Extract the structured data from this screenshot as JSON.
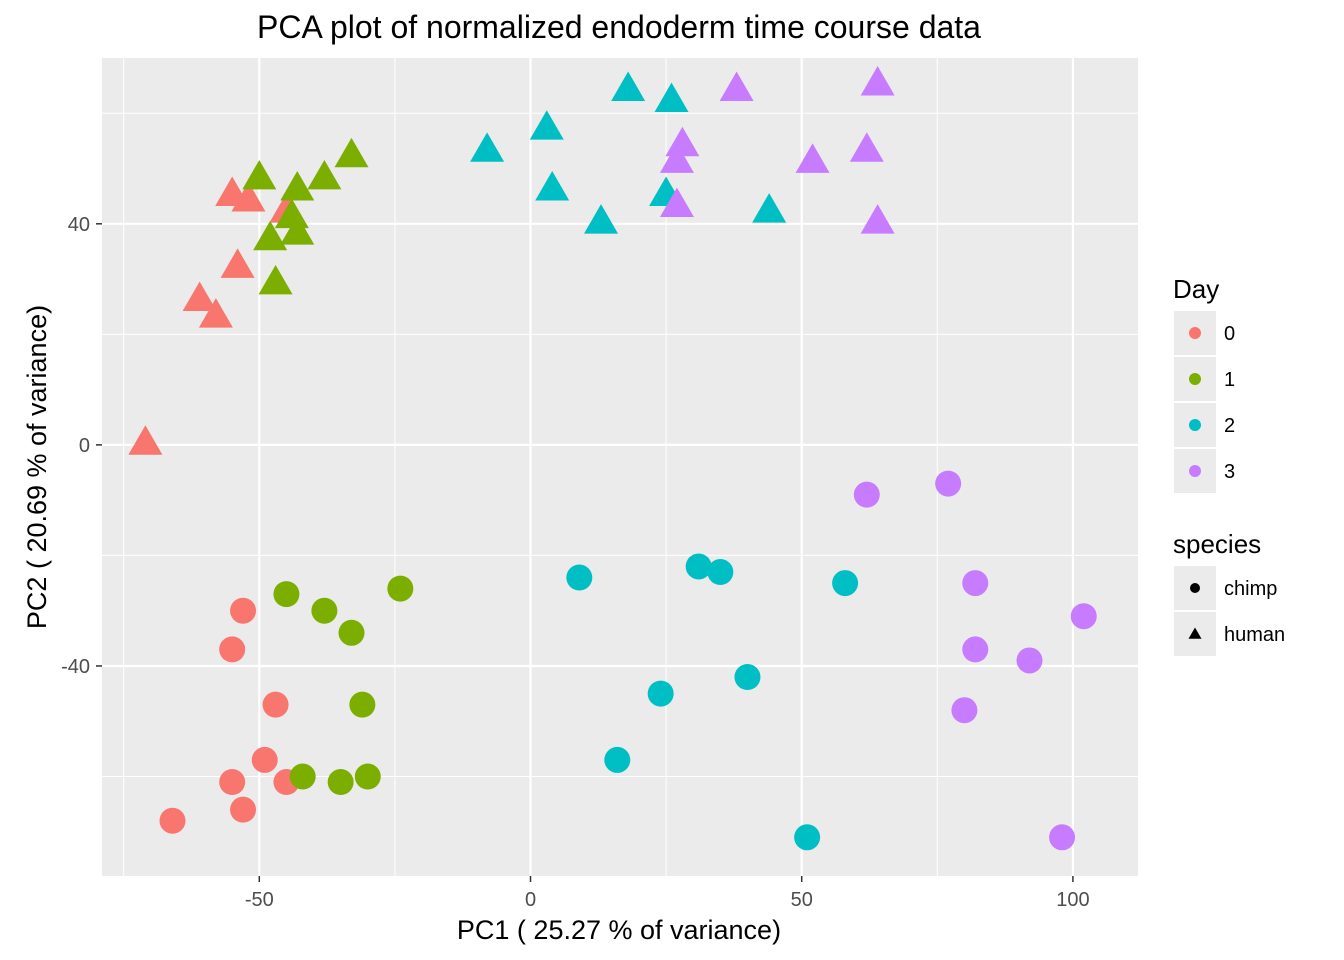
{
  "chart_data": {
    "type": "scatter",
    "title": "PCA plot of normalized endoderm time course data",
    "xlabel": "PC1 ( 25.27 % of variance)",
    "ylabel": "PC2 ( 20.69 % of variance)",
    "xlim": [
      -79,
      112
    ],
    "ylim": [
      -78,
      70
    ],
    "x_ticks": [
      -50,
      0,
      50,
      100
    ],
    "y_ticks": [
      -40,
      0,
      40
    ],
    "x_minor": [
      -75,
      -25,
      25,
      75
    ],
    "y_minor": [
      -60,
      -20,
      20,
      60
    ],
    "grid": true,
    "legend_position": "right",
    "colors": {
      "0": "#F8766D",
      "1": "#7CAE00",
      "2": "#00BFC4",
      "3": "#C77CFF"
    },
    "panel_bg": "#EBEBEB",
    "legends": [
      {
        "title": "Day",
        "type": "color",
        "items": [
          {
            "label": "0",
            "key": "0"
          },
          {
            "label": "1",
            "key": "1"
          },
          {
            "label": "2",
            "key": "2"
          },
          {
            "label": "3",
            "key": "3"
          }
        ]
      },
      {
        "title": "species",
        "type": "shape",
        "items": [
          {
            "label": "chimp",
            "shape": "circle"
          },
          {
            "label": "human",
            "shape": "triangle"
          }
        ]
      }
    ],
    "series": [
      {
        "day": "0",
        "species": "human",
        "shape": "triangle",
        "points": [
          [
            -71,
            0
          ],
          [
            -55,
            45
          ],
          [
            -52,
            44
          ],
          [
            -45,
            42
          ],
          [
            -54,
            32
          ],
          [
            -61,
            26
          ],
          [
            -58,
            23
          ]
        ]
      },
      {
        "day": "1",
        "species": "human",
        "shape": "triangle",
        "points": [
          [
            -50,
            48
          ],
          [
            -43,
            46
          ],
          [
            -38,
            48
          ],
          [
            -33,
            52
          ],
          [
            -44,
            41
          ],
          [
            -48,
            37
          ],
          [
            -43,
            38
          ],
          [
            -47,
            29
          ]
        ]
      },
      {
        "day": "2",
        "species": "human",
        "shape": "triangle",
        "points": [
          [
            -8,
            53
          ],
          [
            3,
            57
          ],
          [
            18,
            64
          ],
          [
            26,
            62
          ],
          [
            4,
            46
          ],
          [
            13,
            40
          ],
          [
            25,
            45
          ],
          [
            44,
            42
          ]
        ]
      },
      {
        "day": "3",
        "species": "human",
        "shape": "triangle",
        "points": [
          [
            38,
            64
          ],
          [
            64,
            65
          ],
          [
            28,
            54
          ],
          [
            27,
            51
          ],
          [
            52,
            51
          ],
          [
            62,
            53
          ],
          [
            27,
            43
          ],
          [
            64,
            40
          ]
        ]
      },
      {
        "day": "0",
        "species": "chimp",
        "shape": "circle",
        "points": [
          [
            -53,
            -30
          ],
          [
            -55,
            -37
          ],
          [
            -47,
            -47
          ],
          [
            -49,
            -57
          ],
          [
            -55,
            -61
          ],
          [
            -45,
            -61
          ],
          [
            -53,
            -66
          ],
          [
            -66,
            -68
          ]
        ]
      },
      {
        "day": "1",
        "species": "chimp",
        "shape": "circle",
        "points": [
          [
            -45,
            -27
          ],
          [
            -38,
            -30
          ],
          [
            -33,
            -34
          ],
          [
            -24,
            -26
          ],
          [
            -31,
            -47
          ],
          [
            -42,
            -60
          ],
          [
            -35,
            -61
          ],
          [
            -30,
            -60
          ]
        ]
      },
      {
        "day": "2",
        "species": "chimp",
        "shape": "circle",
        "points": [
          [
            9,
            -24
          ],
          [
            31,
            -22
          ],
          [
            35,
            -23
          ],
          [
            58,
            -25
          ],
          [
            24,
            -45
          ],
          [
            40,
            -42
          ],
          [
            16,
            -57
          ],
          [
            51,
            -71
          ]
        ]
      },
      {
        "day": "3",
        "species": "chimp",
        "shape": "circle",
        "points": [
          [
            62,
            -9
          ],
          [
            77,
            -7
          ],
          [
            82,
            -25
          ],
          [
            102,
            -31
          ],
          [
            82,
            -37
          ],
          [
            92,
            -39
          ],
          [
            80,
            -48
          ],
          [
            98,
            -71
          ]
        ]
      }
    ]
  }
}
